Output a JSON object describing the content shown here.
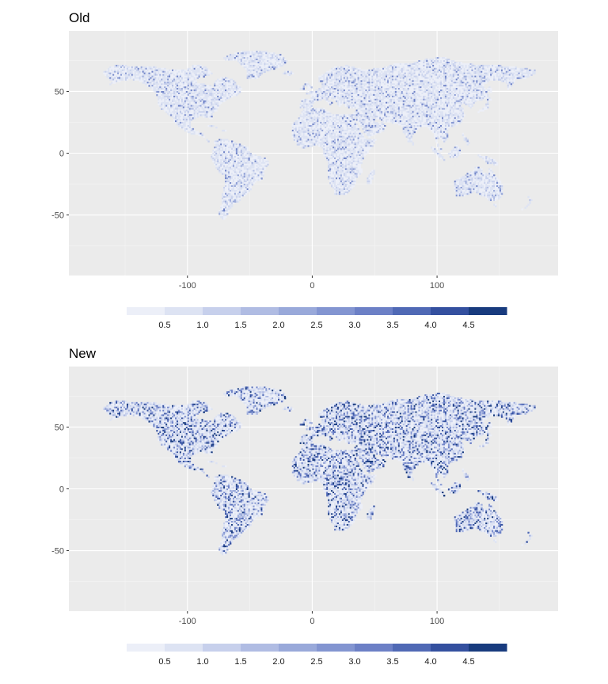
{
  "chart_data": [
    {
      "type": "heatmap",
      "title": "Old",
      "xlabel": "",
      "ylabel": "",
      "xlim": [
        -195,
        197
      ],
      "ylim": [
        -99,
        99
      ],
      "x_ticks": [
        -100,
        0,
        100
      ],
      "y_ticks": [
        50,
        0,
        -50
      ],
      "x_minor_ticks": [
        -150,
        -50,
        50,
        150
      ],
      "y_minor_ticks": [
        75,
        25,
        -25,
        -75
      ],
      "legend": {
        "position": "bottom",
        "bins": [
          0.25,
          0.5,
          0.75,
          1.0,
          1.25,
          1.5,
          1.75,
          2.0,
          2.25,
          2.5,
          2.75,
          3.0,
          3.25,
          3.5,
          3.75,
          4.0,
          4.25,
          4.5,
          4.75,
          5.0
        ],
        "labels": [
          "0.5",
          "1.0",
          "1.5",
          "2.0",
          "2.5",
          "3.0",
          "3.5",
          "4.0",
          "4.5"
        ],
        "label_values": [
          0.5,
          1.0,
          1.5,
          2.0,
          2.5,
          3.0,
          3.5,
          4.0,
          4.5
        ]
      },
      "intensity": 0.22
    },
    {
      "type": "heatmap",
      "title": "New",
      "xlabel": "",
      "ylabel": "",
      "xlim": [
        -195,
        197
      ],
      "ylim": [
        -99,
        99
      ],
      "x_ticks": [
        -100,
        0,
        100
      ],
      "y_ticks": [
        50,
        0,
        -50
      ],
      "x_minor_ticks": [
        -150,
        -50,
        50,
        150
      ],
      "y_minor_ticks": [
        75,
        25,
        -25,
        -75
      ],
      "legend": {
        "position": "bottom",
        "bins": [
          0.25,
          0.5,
          0.75,
          1.0,
          1.25,
          1.5,
          1.75,
          2.0,
          2.25,
          2.5,
          2.75,
          3.0,
          3.25,
          3.5,
          3.75,
          4.0,
          4.25,
          4.5,
          4.75,
          5.0
        ],
        "labels": [
          "0.5",
          "1.0",
          "1.5",
          "2.0",
          "2.5",
          "3.0",
          "3.5",
          "4.0",
          "4.5"
        ],
        "label_values": [
          0.5,
          1.0,
          1.5,
          2.0,
          2.5,
          3.0,
          3.5,
          4.0,
          4.5
        ]
      },
      "intensity": 0.6
    }
  ],
  "colors": {
    "panel_background": "#ebebeb",
    "grid_major": "#ffffff",
    "land_base": "#dbe3f5",
    "scale": [
      "#eceff8",
      "#dde3f3",
      "#c7d0ec",
      "#b0bce3",
      "#99a9da",
      "#8395d1",
      "#6c80c6",
      "#5069b5",
      "#34509f",
      "#183b7e"
    ]
  }
}
